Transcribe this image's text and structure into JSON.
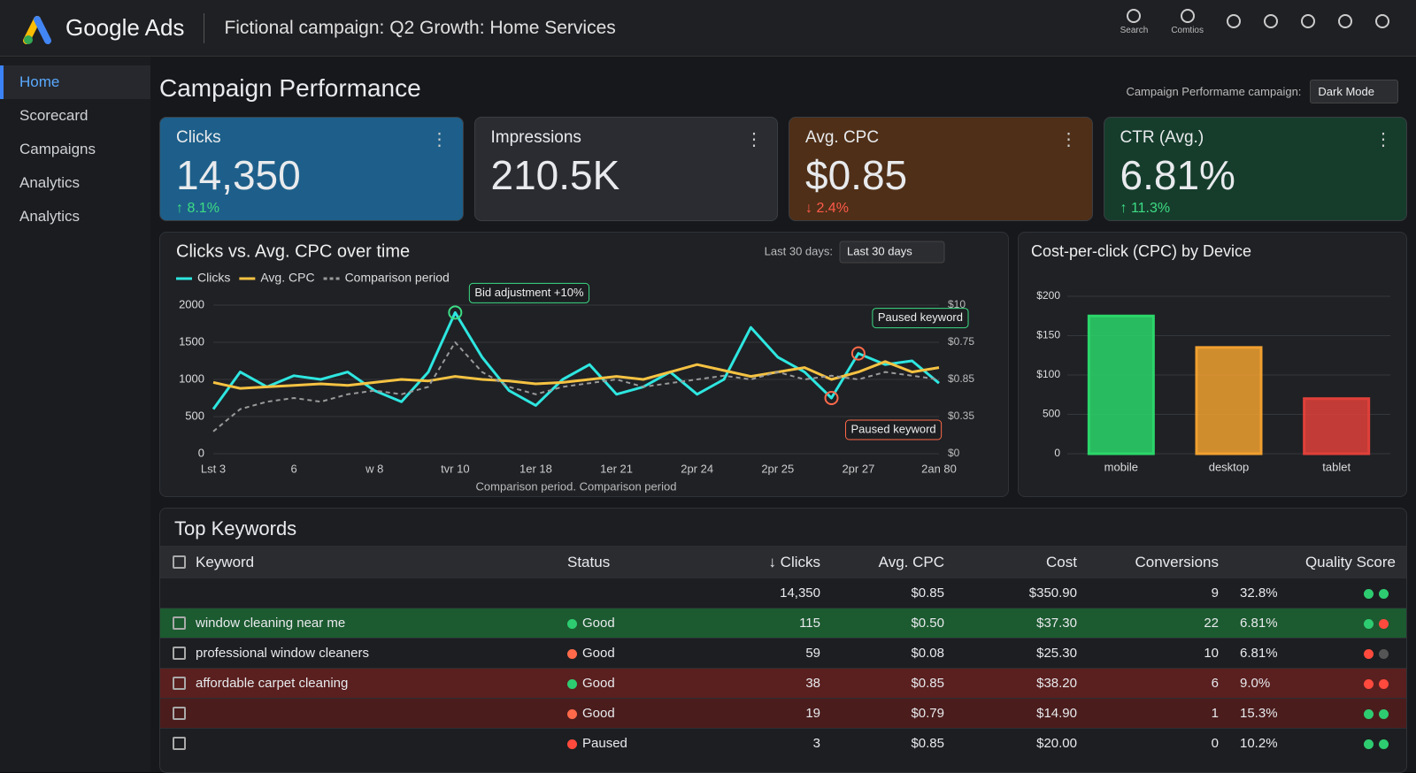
{
  "header": {
    "product": "Google Ads",
    "campaign": "Fictional campaign: Q2 Growth: Home Services",
    "icons": [
      "Search",
      "Comtios"
    ]
  },
  "nav": {
    "items": [
      "Home",
      "Scorecard",
      "Campaigns",
      "Analytics",
      "Analytics"
    ],
    "active": 0
  },
  "page": {
    "title": "Campaign Performance",
    "selector_label": "Campaign Performame campaign:",
    "selector_value": "Dark Mode"
  },
  "kpis": [
    {
      "label": "Clicks",
      "value": "14,350",
      "change": "↑ 8.1%",
      "color": "#1d5f8a",
      "change_color": "#3ddc84"
    },
    {
      "label": "Impressions",
      "value": "210.5K",
      "color": "#2a2c31"
    },
    {
      "label": "Avg. CPC",
      "value": "$0.85",
      "change": "↓ 2.4%",
      "color": "#4f2f18",
      "change_color": "#ff5a4a"
    },
    {
      "label": "CTR (Avg.)",
      "value": "6.81%",
      "change": "↑ 11.3%",
      "color": "#163d2c",
      "change_color": "#3ddc84"
    }
  ],
  "line_chart": {
    "type": "line",
    "title": "Clicks vs. Avg. CPC over time",
    "range_label": "Last 30 days:",
    "range_value": "Last 30 days",
    "categories": [
      "Lst 3",
      null,
      null,
      "6",
      null,
      null,
      "w 8",
      null,
      null,
      "tvr 10",
      null,
      null,
      "1er 18",
      null,
      null,
      "1er 21",
      null,
      null,
      "2pr 24",
      null,
      null,
      "2pr 25",
      null,
      null,
      "2pr 27",
      null,
      null,
      "2an 80"
    ],
    "series": [
      {
        "name": "Clicks",
        "color": "#2ee6e0",
        "values": [
          600,
          1100,
          900,
          1050,
          1000,
          1100,
          850,
          700,
          1100,
          1900,
          1300,
          850,
          650,
          1000,
          1200,
          800,
          900,
          1100,
          800,
          1000,
          1700,
          1300,
          1100,
          750,
          1350,
          1200,
          1250,
          950
        ]
      },
      {
        "name": "Avg. CPC",
        "color": "#f5c242",
        "axis": "y2",
        "values": [
          0.48,
          0.44,
          0.45,
          0.46,
          0.47,
          0.46,
          0.48,
          0.5,
          0.49,
          0.52,
          0.5,
          0.49,
          0.47,
          0.48,
          0.5,
          0.52,
          0.5,
          0.55,
          0.6,
          0.56,
          0.52,
          0.55,
          0.58,
          0.5,
          0.55,
          0.62,
          0.55,
          0.58
        ]
      },
      {
        "name": "Comparison period",
        "color": "#9a9a9a",
        "dashed": true,
        "values": [
          300,
          600,
          700,
          750,
          700,
          800,
          850,
          800,
          900,
          1500,
          1100,
          900,
          800,
          900,
          950,
          1000,
          900,
          950,
          1000,
          1050,
          1000,
          1100,
          1000,
          1050,
          1000,
          1100,
          1050,
          1000
        ]
      }
    ],
    "ylim": [
      0,
      2000
    ],
    "yticks": [
      0,
      500,
      1000,
      1500,
      2000
    ],
    "y2lim": [
      0,
      1
    ],
    "y2_labels": [
      "$0",
      "$0.35",
      "$0.85",
      "$0.75",
      "$10"
    ],
    "annotations": [
      "Bid adjustment +10%",
      "Paused keyword",
      "Paused keyword"
    ],
    "note": "Comparison period. Comparison period",
    "grid": true
  },
  "bar_chart": {
    "type": "bar",
    "title": "Cost-per-click (CPC) by Device",
    "categories": [
      "mobile",
      "desktop",
      "tablet"
    ],
    "values": [
      175,
      135,
      70
    ],
    "colors": [
      "#2bd66a",
      "#f0a030",
      "#e0403a"
    ],
    "ylim": [
      0,
      200
    ],
    "y_labels": [
      "0",
      "500",
      "$100",
      "$150",
      "$200"
    ],
    "grid": true
  },
  "table": {
    "title": "Top Keywords",
    "columns": [
      "Keyword",
      "Status",
      "↓ Clicks",
      "Avg. CPC",
      "Cost",
      "Conversions",
      "Quality Score"
    ],
    "summary": {
      "clicks": "14,350",
      "avg_cpc": "$0.85",
      "cost": "$350.90",
      "conversions": "9",
      "quality": "32.8%",
      "dots": [
        "#2ecc71",
        "#2ecc71"
      ]
    },
    "rows": [
      {
        "keyword": "window cleaning near me",
        "status": "Good",
        "status_color": "#2ecc71",
        "clicks": "115",
        "avg_cpc": "$0.50",
        "cost": "$37.30",
        "conversions": "22",
        "quality": "6.81%",
        "dots": [
          "#2ecc71",
          "#ff4a3d"
        ],
        "highlight": "#1c5a30"
      },
      {
        "keyword": "professional window cleaners",
        "status": "Good",
        "status_color": "#ff6a4a",
        "clicks": "59",
        "avg_cpc": "$0.08",
        "cost": "$25.30",
        "conversions": "10",
        "quality": "6.81%",
        "dots": [
          "#ff4a3d",
          "#555555"
        ]
      },
      {
        "keyword": "affordable carpet cleaning",
        "status": "Good",
        "status_color": "#2ecc71",
        "clicks": "38",
        "avg_cpc": "$0.85",
        "cost": "$38.20",
        "conversions": "6",
        "quality": "9.0%",
        "dots": [
          "#ff4a3d",
          "#ff4a3d"
        ],
        "highlight": "#5a1f1f"
      },
      {
        "status": "Good",
        "status_color": "#ff6a4a",
        "clicks": "19",
        "avg_cpc": "$0.79",
        "cost": "$14.90",
        "conversions": "1",
        "quality": "15.3%",
        "dots": [
          "#2ecc71",
          "#2ecc71"
        ],
        "highlight": "#4a1c1c"
      },
      {
        "status": "Paused",
        "status_color": "#ff4a3d",
        "clicks": "3",
        "avg_cpc": "$0.85",
        "cost": "$20.00",
        "conversions": "0",
        "quality": "10.2%",
        "dots": [
          "#2ecc71",
          "#2ecc71"
        ]
      }
    ]
  }
}
